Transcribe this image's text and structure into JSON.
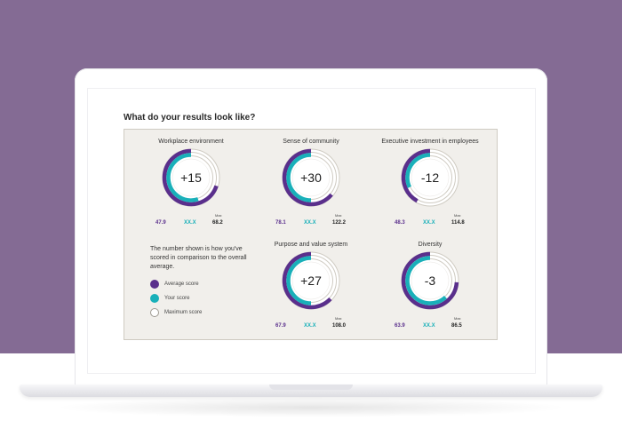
{
  "page": {
    "heading": "What do your results look like?"
  },
  "colors": {
    "average": "#5a2f8c",
    "your": "#19b0b9",
    "max_ring": "#cfcbc2",
    "panel_bg": "#f1efeb",
    "backdrop": "#846b94"
  },
  "gauges": [
    {
      "title": "Workplace environment",
      "score": "+15",
      "average": "47.9",
      "your": "XX.X",
      "max_label": "Max",
      "max": "68.2",
      "average_fraction": 0.7,
      "your_fraction": 0.55
    },
    {
      "title": "Sense of community",
      "score": "+30",
      "average": "78.1",
      "your": "XX.X",
      "max_label": "Max",
      "max": "122.2",
      "average_fraction": 0.64,
      "your_fraction": 0.5
    },
    {
      "title": "Executive investment in employees",
      "score": "-12",
      "average": "48.3",
      "your": "XX.X",
      "max_label": "Max",
      "max": "114.8",
      "average_fraction": 0.42,
      "your_fraction": 0.32
    },
    {
      "title": "Purpose and value system",
      "score": "+27",
      "average": "67.9",
      "your": "XX.X",
      "max_label": "Max",
      "max": "108.0",
      "average_fraction": 0.63,
      "your_fraction": 0.5
    },
    {
      "title": "Diversity",
      "score": "-3",
      "average": "63.9",
      "your": "XX.X",
      "max_label": "Max",
      "max": "86.5",
      "average_fraction": 0.74,
      "your_fraction": 0.62
    }
  ],
  "legend": {
    "note": "The number shown is how you've scored in comparison to the overall average.",
    "items": [
      {
        "label": "Average score",
        "icon": "purple-dot-icon"
      },
      {
        "label": "Your score",
        "icon": "teal-dot-icon"
      },
      {
        "label": "Maximum score",
        "icon": "empty-circle-icon"
      }
    ]
  }
}
